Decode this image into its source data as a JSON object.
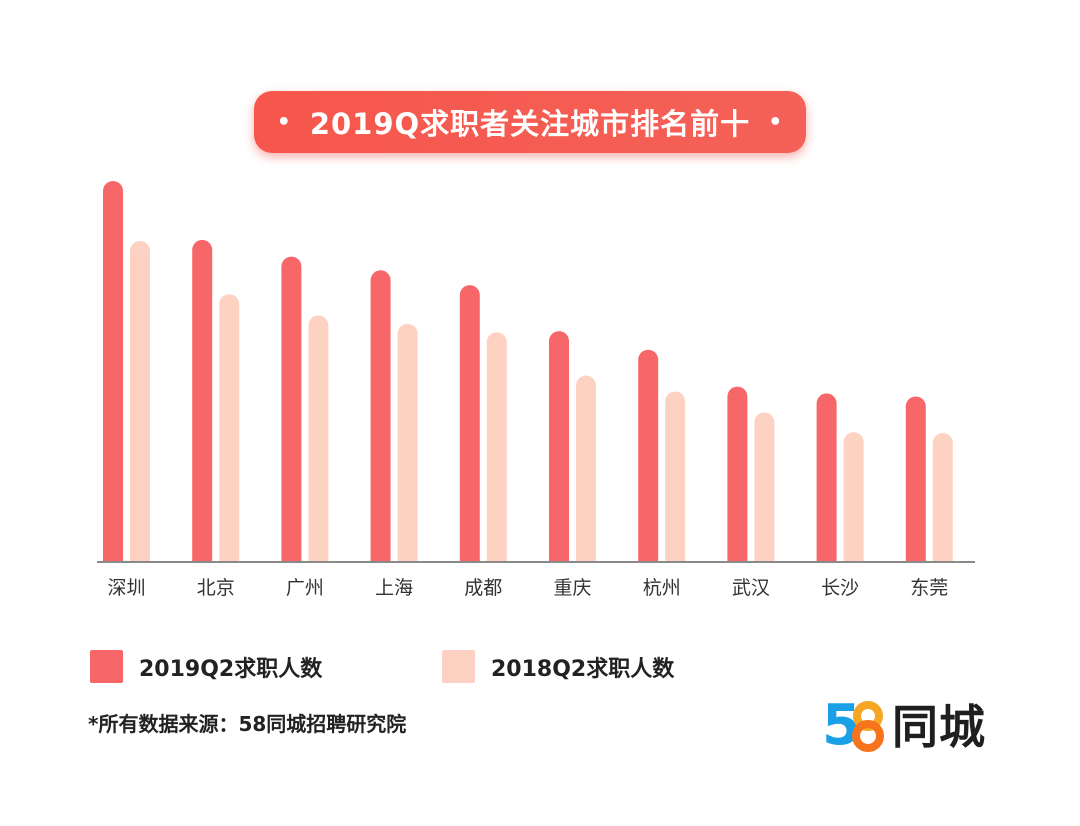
{
  "title": "2019Q求职者关注城市排名前十",
  "title_dot": "•",
  "colors": {
    "series_2019": "#f7676a",
    "series_2018": "#fdd2c3",
    "axis": "#8a8a8a",
    "title_bg": "#f6564c"
  },
  "legend": [
    {
      "label": "2019Q2求职人数",
      "color": "#f7676a"
    },
    {
      "label": "2018Q2求职人数",
      "color": "#fdd2c3"
    }
  ],
  "source": "*所有数据来源：58同城招聘研究院",
  "logo": {
    "digits": "58",
    "text": "同城",
    "icon": "58-tongcheng-logo-icon"
  },
  "chart_data": {
    "type": "bar",
    "categories": [
      "深圳",
      "北京",
      "广州",
      "上海",
      "成都",
      "重庆",
      "杭州",
      "武汉",
      "长沙",
      "东莞"
    ],
    "series": [
      {
        "name": "2019Q2求职人数",
        "values": [
          100,
          84.5,
          80.1,
          76.5,
          72.6,
          60.5,
          55.6,
          45.9,
          44.1,
          43.3
        ]
      },
      {
        "name": "2018Q2求职人数",
        "values": [
          84.2,
          70.2,
          64.6,
          62.4,
          60.2,
          48.8,
          44.6,
          39.1,
          33.9,
          33.7
        ]
      }
    ],
    "ylim": [
      0,
      100
    ],
    "yaxis_visible": false,
    "grid": false,
    "legend_position": "bottom-left",
    "note": "no numeric axis shown; values are relative bar heights (深圳 2019Q2 = 100)"
  }
}
